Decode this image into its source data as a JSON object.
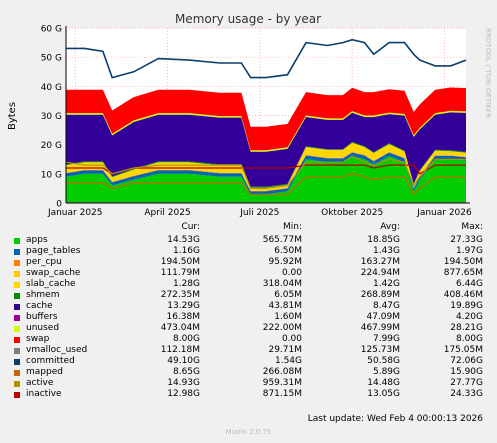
{
  "chart_data": {
    "type": "area",
    "title": "Memory usage - by year",
    "ylabel": "Bytes",
    "side_label": "RRDTOOL / TOBI OETIKER",
    "ylim": [
      0,
      60
    ],
    "y_unit": "G",
    "yticks": [
      "0",
      "10 G",
      "20 G",
      "30 G",
      "40 G",
      "50 G",
      "60 G"
    ],
    "xticks": [
      "Januar 2025",
      "April 2025",
      "Juli 2025",
      "Oktober 2025",
      "Januar 2026"
    ],
    "xtick_positions": [
      0.3,
      3.3,
      6.3,
      9.3,
      12.3
    ],
    "x_unit": "months since 2025-01-01 (approx)",
    "x": [
      0,
      0.6,
      1.2,
      1.5,
      2.2,
      3.0,
      4.0,
      5.0,
      5.7,
      6.0,
      6.5,
      7.2,
      7.8,
      8.5,
      9.0,
      9.3,
      9.7,
      10.0,
      10.5,
      11.0,
      11.3,
      11.5,
      12.0,
      12.5,
      13.0
    ],
    "series": [
      {
        "name": "apps",
        "color": "#00cc00",
        "values": [
          9,
          10,
          10,
          6,
          8,
          10,
          10,
          9,
          9,
          3,
          3,
          4,
          15,
          14,
          14,
          16,
          15,
          13,
          16,
          14,
          4,
          8,
          15,
          15,
          14.5
        ]
      },
      {
        "name": "page_tables",
        "color": "#0066b3",
        "values": [
          1.2,
          1.2,
          1.2,
          1.1,
          1.2,
          1.2,
          1.2,
          1.2,
          1.2,
          1.0,
          1.0,
          1.0,
          1.3,
          1.3,
          1.3,
          1.3,
          1.3,
          1.3,
          1.3,
          1.3,
          1.0,
          1.1,
          1.2,
          1.2,
          1.2
        ]
      },
      {
        "name": "per_cpu",
        "color": "#ff8000",
        "values": [
          0.19,
          0.19,
          0.19,
          0.19,
          0.19,
          0.19,
          0.19,
          0.19,
          0.19,
          0.19,
          0.19,
          0.19,
          0.19,
          0.19,
          0.19,
          0.19,
          0.19,
          0.19,
          0.19,
          0.19,
          0.19,
          0.19,
          0.19,
          0.19,
          0.19
        ]
      },
      {
        "name": "swap_cache",
        "color": "#ffcc00",
        "values": [
          0.1,
          0.1,
          0.1,
          0.1,
          0.1,
          0.1,
          0.1,
          0.1,
          0.1,
          0.1,
          0.1,
          0.1,
          0.2,
          0.2,
          0.2,
          0.2,
          0.2,
          0.2,
          0.2,
          0.2,
          0.2,
          0.2,
          0.1,
          0.1,
          0.1
        ]
      },
      {
        "name": "slab_cache",
        "color": "#ffd700",
        "values": [
          2.5,
          2.5,
          2.5,
          1.5,
          2.0,
          2.5,
          2.5,
          2.5,
          2.5,
          1.0,
          1.0,
          1.0,
          2.5,
          2.5,
          2.5,
          3.0,
          2.5,
          2.5,
          2.5,
          2.0,
          1.0,
          1.5,
          1.5,
          1.3,
          1.3
        ]
      },
      {
        "name": "shmem",
        "color": "#008f00",
        "values": [
          0.27,
          0.27,
          0.27,
          0.27,
          0.27,
          0.27,
          0.27,
          0.27,
          0.27,
          0.27,
          0.27,
          0.27,
          0.27,
          0.27,
          0.27,
          0.27,
          0.27,
          0.27,
          0.27,
          0.27,
          0.27,
          0.27,
          0.27,
          0.27,
          0.27
        ]
      },
      {
        "name": "cache",
        "color": "#330099",
        "values": [
          17,
          16,
          16,
          14,
          16,
          16,
          16,
          16,
          16,
          12,
          12,
          12,
          10,
          10,
          10,
          10,
          10,
          12,
          10,
          12,
          16,
          14,
          12,
          13,
          13.3
        ]
      },
      {
        "name": "buffers",
        "color": "#990099",
        "values": [
          0.05,
          0.05,
          0.05,
          0.05,
          0.05,
          0.05,
          0.05,
          0.05,
          0.05,
          0.05,
          0.05,
          0.05,
          0.05,
          0.05,
          0.05,
          0.05,
          0.05,
          0.05,
          0.05,
          0.05,
          0.05,
          0.05,
          0.05,
          0.05,
          0.05
        ]
      },
      {
        "name": "unused",
        "color": "#ccff00",
        "values": [
          0.5,
          0.5,
          0.5,
          0.5,
          0.5,
          0.5,
          0.5,
          0.5,
          0.5,
          0.5,
          0.5,
          0.5,
          0.5,
          0.5,
          0.5,
          0.5,
          0.5,
          0.5,
          0.5,
          0.5,
          0.5,
          0.5,
          0.5,
          0.5,
          0.5
        ]
      },
      {
        "name": "swap",
        "color": "#ff0000",
        "values": [
          8,
          8,
          8,
          8,
          8,
          8,
          8,
          8,
          8,
          8,
          8,
          8,
          8,
          8,
          8,
          8,
          8,
          8,
          8,
          8,
          8,
          8,
          8,
          8,
          8
        ]
      }
    ],
    "line_series": [
      {
        "name": "committed",
        "color": "#0a3f6b",
        "values": [
          53,
          53,
          52,
          43,
          45,
          49.5,
          49,
          48,
          48,
          43,
          43,
          44,
          55,
          54,
          55,
          56,
          55,
          51,
          55,
          55,
          51,
          49,
          47,
          47,
          49
        ]
      },
      {
        "name": "inactive",
        "color": "#bb0000",
        "values": [
          12,
          12,
          12,
          10,
          12,
          12,
          12,
          12,
          12,
          12,
          12,
          12,
          13,
          13,
          13,
          13,
          13,
          12,
          13,
          13,
          13,
          10,
          13,
          13,
          13
        ]
      },
      {
        "name": "active",
        "color": "#b39400",
        "values": [
          14,
          13,
          13,
          10,
          12,
          13,
          13,
          13,
          13,
          5,
          5,
          6,
          14,
          14,
          14,
          16,
          14,
          13,
          15,
          14,
          6,
          9,
          15,
          15,
          14.9
        ]
      },
      {
        "name": "mapped",
        "color": "#cc6600",
        "values": [
          7,
          7,
          7,
          5,
          7,
          7,
          7,
          7,
          7,
          3,
          3,
          3,
          9,
          9,
          9,
          10,
          9,
          8,
          9,
          9,
          3,
          5,
          9,
          9,
          8.7
        ]
      },
      {
        "name": "vmalloc_used",
        "color": "#808080",
        "values": [
          0.12,
          0.12,
          0.12,
          0.12,
          0.12,
          0.12,
          0.12,
          0.12,
          0.12,
          0.12,
          0.12,
          0.12,
          0.12,
          0.12,
          0.12,
          0.12,
          0.12,
          0.12,
          0.12,
          0.12,
          0.12,
          0.12,
          0.12,
          0.12,
          0.12
        ]
      }
    ]
  },
  "legend": {
    "headers": {
      "cur": "Cur:",
      "min": "Min:",
      "avg": "Avg:",
      "max": "Max:"
    },
    "rows": [
      {
        "name": "apps",
        "color": "#00cc00",
        "cur": "14.53G",
        "min": "565.77M",
        "avg": "18.85G",
        "max": "27.33G"
      },
      {
        "name": "page_tables",
        "color": "#0066b3",
        "cur": "1.16G",
        "min": "6.50M",
        "avg": "1.43G",
        "max": "1.97G"
      },
      {
        "name": "per_cpu",
        "color": "#ff8000",
        "cur": "194.50M",
        "min": "95.92M",
        "avg": "163.27M",
        "max": "194.50M"
      },
      {
        "name": "swap_cache",
        "color": "#ffcc00",
        "cur": "111.79M",
        "min": "0.00",
        "avg": "224.94M",
        "max": "877.65M"
      },
      {
        "name": "slab_cache",
        "color": "#ffd700",
        "cur": "1.28G",
        "min": "318.04M",
        "avg": "1.42G",
        "max": "6.44G"
      },
      {
        "name": "shmem",
        "color": "#008f00",
        "cur": "272.35M",
        "min": "6.05M",
        "avg": "268.89M",
        "max": "408.46M"
      },
      {
        "name": "cache",
        "color": "#330099",
        "cur": "13.29G",
        "min": "43.81M",
        "avg": "8.47G",
        "max": "19.89G"
      },
      {
        "name": "buffers",
        "color": "#990099",
        "cur": "16.38M",
        "min": "1.60M",
        "avg": "47.09M",
        "max": "4.20G"
      },
      {
        "name": "unused",
        "color": "#ccff00",
        "cur": "473.04M",
        "min": "222.00M",
        "avg": "467.99M",
        "max": "28.21G"
      },
      {
        "name": "swap",
        "color": "#ff0000",
        "cur": "8.00G",
        "min": "0.00",
        "avg": "7.99G",
        "max": "8.00G"
      },
      {
        "name": "vmalloc_used",
        "color": "#808080",
        "cur": "112.18M",
        "min": "29.71M",
        "avg": "125.73M",
        "max": "175.05M"
      },
      {
        "name": "committed",
        "color": "#0a3f6b",
        "cur": "49.10G",
        "min": "1.54G",
        "avg": "50.58G",
        "max": "72.06G"
      },
      {
        "name": "mapped",
        "color": "#cc6600",
        "cur": "8.65G",
        "min": "266.08M",
        "avg": "5.89G",
        "max": "15.90G"
      },
      {
        "name": "active",
        "color": "#b39400",
        "cur": "14.93G",
        "min": "959.31M",
        "avg": "14.48G",
        "max": "27.77G"
      },
      {
        "name": "inactive",
        "color": "#bb0000",
        "cur": "12.98G",
        "min": "871.15M",
        "avg": "13.05G",
        "max": "24.33G"
      }
    ]
  },
  "footer": {
    "last_update": "Last update: Wed Feb  4 00:00:13 2026",
    "munin": "Munin 2.0.75"
  }
}
